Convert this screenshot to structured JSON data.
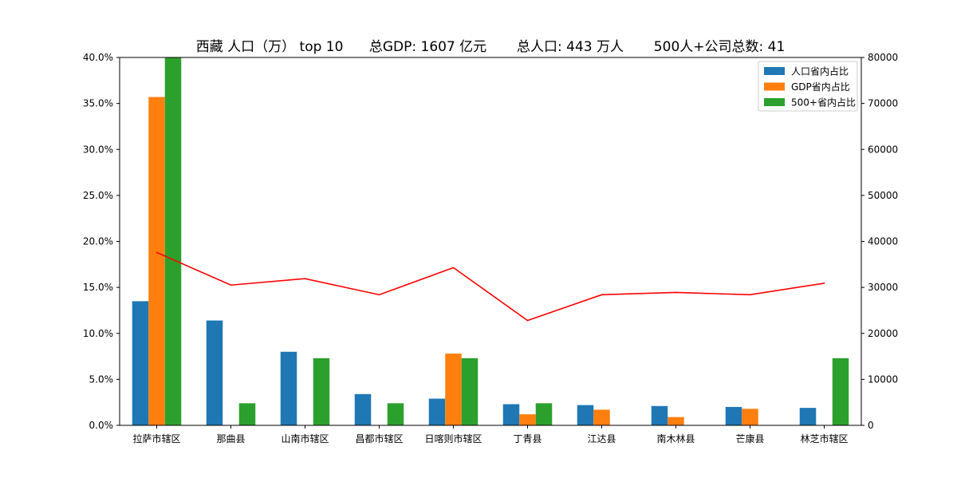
{
  "chart_data": {
    "type": "bar",
    "title": "西藏 人口（万） top 10      总GDP: 1607 亿元       总人口: 443 万人       500人+公司总数: 41",
    "categories": [
      "拉萨市辖区",
      "那曲县",
      "山南市辖区",
      "昌都市辖区",
      "日喀则市辖区",
      "丁青县",
      "江达县",
      "南木林县",
      "芒康县",
      "林芝市辖区"
    ],
    "series": [
      {
        "name": "人口省内占比",
        "type": "bar",
        "axis": "left",
        "color": "#1f77b4",
        "values": [
          0.135,
          0.114,
          0.08,
          0.034,
          0.029,
          0.023,
          0.022,
          0.021,
          0.02,
          0.019
        ]
      },
      {
        "name": "GDP省内占比",
        "type": "bar",
        "axis": "left",
        "color": "#ff7f0e",
        "values": [
          0.357,
          0.0,
          0.0,
          0.0,
          0.078,
          0.012,
          0.017,
          0.009,
          0.018,
          0.0
        ]
      },
      {
        "name": "500+省内占比",
        "type": "bar",
        "axis": "left",
        "color": "#2ca02c",
        "values": [
          0.4,
          0.024,
          0.073,
          0.024,
          0.073,
          0.024,
          0.0,
          0.0,
          0.0,
          0.073
        ]
      },
      {
        "name": "",
        "type": "line",
        "axis": "right",
        "color": "#ff0000",
        "values": [
          37600,
          30500,
          31900,
          28400,
          34300,
          22800,
          28400,
          28900,
          28400,
          30900
        ]
      }
    ],
    "y_left": {
      "ylim": [
        0,
        0.4
      ],
      "ticks": [
        0,
        0.05,
        0.1,
        0.15,
        0.2,
        0.25,
        0.3,
        0.35,
        0.4
      ],
      "tick_labels": [
        "0.0%",
        "5.0%",
        "10.0%",
        "15.0%",
        "20.0%",
        "25.0%",
        "30.0%",
        "35.0%",
        "40.0%"
      ]
    },
    "y_right": {
      "ylim": [
        0,
        80000
      ],
      "ticks": [
        0,
        10000,
        20000,
        30000,
        40000,
        50000,
        60000,
        70000,
        80000
      ],
      "tick_labels": [
        "0",
        "10000",
        "20000",
        "30000",
        "40000",
        "50000",
        "60000",
        "70000",
        "80000"
      ]
    },
    "xlabel": "",
    "ylabel": "",
    "legend": {
      "position": "top-right",
      "entries": [
        "人口省内占比",
        "GDP省内占比",
        "500+省内占比"
      ]
    },
    "grid": false
  }
}
